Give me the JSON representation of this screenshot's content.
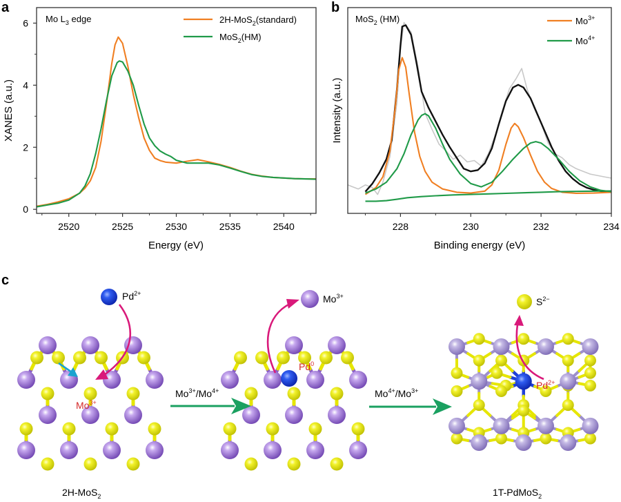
{
  "figure": {
    "panel_labels": {
      "a": "a",
      "b": "b",
      "c": "c"
    }
  },
  "chart_data": [
    {
      "panel": "a",
      "type": "line",
      "title": "",
      "annotation": {
        "main": "Mo L",
        "sub": "3",
        "rest": " edge"
      },
      "xlabel": "Energy (eV)",
      "ylabel": "XANES (a.u.)",
      "xlim": [
        2517,
        2543
      ],
      "ylim": [
        -0.13,
        6.5
      ],
      "xticks": [
        2520,
        2525,
        2530,
        2535,
        2540
      ],
      "xminor": [
        2517.5,
        2522.5,
        2527.5,
        2532.5,
        2537.5,
        2542.5
      ],
      "yticks": [
        0,
        2,
        4,
        6
      ],
      "yminor": [
        1,
        3,
        5
      ],
      "grid": false,
      "legend_position": "top-right",
      "series": [
        {
          "name": "2H-MoS2(standard)",
          "legend": {
            "pre": "2H-MoS",
            "sub": "2",
            "post": "(standard)"
          },
          "color": "#f07f22",
          "x": [
            2517,
            2518,
            2519,
            2520,
            2521,
            2521.5,
            2522,
            2522.5,
            2523,
            2523.5,
            2524,
            2524.3,
            2524.6,
            2525,
            2525.5,
            2526,
            2526.5,
            2527,
            2527.5,
            2528,
            2528.5,
            2529,
            2530,
            2531,
            2532,
            2533,
            2534,
            2535,
            2536,
            2537,
            2538,
            2539,
            2540,
            2541,
            2542,
            2543
          ],
          "y": [
            0.1,
            0.16,
            0.24,
            0.34,
            0.52,
            0.68,
            0.92,
            1.35,
            2.2,
            3.4,
            4.7,
            5.3,
            5.55,
            5.35,
            4.6,
            3.7,
            2.95,
            2.3,
            1.9,
            1.65,
            1.57,
            1.52,
            1.49,
            1.55,
            1.6,
            1.53,
            1.45,
            1.35,
            1.23,
            1.13,
            1.07,
            1.03,
            1.01,
            0.99,
            0.98,
            0.98
          ]
        },
        {
          "name": "MoS2(HM)",
          "legend": {
            "pre": "MoS",
            "sub": "2",
            "post": "(HM)"
          },
          "color": "#1f9a48",
          "x": [
            2517,
            2518,
            2519,
            2520,
            2521,
            2521.5,
            2522,
            2522.5,
            2523,
            2523.5,
            2524,
            2524.5,
            2524.7,
            2525,
            2525.5,
            2526,
            2526.5,
            2527,
            2527.5,
            2528,
            2528.5,
            2529,
            2529.5,
            2530,
            2531,
            2532,
            2533,
            2534,
            2535,
            2536,
            2537,
            2538,
            2539,
            2540,
            2541,
            2542,
            2543
          ],
          "y": [
            0.08,
            0.14,
            0.2,
            0.3,
            0.52,
            0.75,
            1.15,
            1.8,
            2.6,
            3.5,
            4.3,
            4.73,
            4.78,
            4.75,
            4.45,
            4.0,
            3.35,
            2.75,
            2.3,
            2.05,
            1.88,
            1.78,
            1.7,
            1.58,
            1.49,
            1.49,
            1.49,
            1.43,
            1.33,
            1.22,
            1.12,
            1.06,
            1.03,
            1.01,
            0.99,
            0.98,
            0.97
          ]
        }
      ]
    },
    {
      "panel": "b",
      "type": "line",
      "title": "",
      "annotation": {
        "main": "MoS",
        "sub": "2",
        "rest": " (HM)"
      },
      "xlabel": "Binding energy (eV)",
      "ylabel": "Intensity (a.u.)",
      "xlim": [
        226.5,
        234
      ],
      "ylim": [
        -0.6,
        7.0
      ],
      "xticks": [
        228,
        230,
        232,
        234
      ],
      "xminor": [
        227,
        229,
        231,
        233
      ],
      "yticks": [],
      "grid": false,
      "legend_position": "top-right",
      "series": [
        {
          "name": "Raw data",
          "color": "#c8c8c8",
          "in_legend": false,
          "x": [
            226.5,
            226.8,
            227.0,
            227.2,
            227.35,
            227.5,
            227.7,
            227.9,
            228.0,
            228.1,
            228.3,
            228.5,
            228.7,
            228.9,
            229.1,
            229.3,
            229.5,
            229.7,
            229.9,
            230.1,
            230.3,
            230.5,
            230.7,
            230.9,
            231.1,
            231.3,
            231.45,
            231.6,
            231.8,
            232.0,
            232.2,
            232.4,
            232.6,
            232.8,
            233.0,
            233.2,
            233.4,
            233.6,
            233.8,
            234.0
          ],
          "y": [
            0.45,
            0.3,
            0.45,
            0.35,
            0.1,
            0.55,
            1.5,
            3.5,
            5.5,
            6.45,
            6.1,
            4.8,
            3.1,
            2.5,
            1.95,
            1.7,
            1.4,
            1.55,
            1.3,
            1.35,
            1.15,
            1.6,
            2.3,
            3.2,
            4.0,
            4.4,
            4.75,
            4.0,
            3.3,
            2.75,
            2.0,
            1.6,
            1.45,
            1.2,
            1.05,
            0.95,
            0.85,
            0.8,
            0.75,
            0.7
          ]
        },
        {
          "name": "Envelope",
          "color": "#111111",
          "in_legend": false,
          "x": [
            227.0,
            227.2,
            227.4,
            227.6,
            227.75,
            227.9,
            228.0,
            228.05,
            228.15,
            228.3,
            228.45,
            228.6,
            228.8,
            229.0,
            229.2,
            229.4,
            229.6,
            229.8,
            230.0,
            230.2,
            230.4,
            230.6,
            230.8,
            231.0,
            231.2,
            231.35,
            231.5,
            231.7,
            231.9,
            232.1,
            232.3,
            232.5,
            232.7,
            232.9,
            233.1,
            233.3,
            233.5,
            233.7,
            234.0
          ],
          "y": [
            0.2,
            0.5,
            0.9,
            1.4,
            2.1,
            4.0,
            5.6,
            6.3,
            6.35,
            6.0,
            5.0,
            3.9,
            3.3,
            2.8,
            2.3,
            1.85,
            1.45,
            1.05,
            0.95,
            1.0,
            1.25,
            1.8,
            2.7,
            3.55,
            4.05,
            4.15,
            4.05,
            3.65,
            3.05,
            2.45,
            1.85,
            1.35,
            0.95,
            0.68,
            0.48,
            0.35,
            0.27,
            0.22,
            0.18
          ]
        },
        {
          "name": "Mo3+",
          "legend": {
            "pre": "Mo",
            "sup": "3+"
          },
          "color": "#f07f22",
          "in_legend": true,
          "x": [
            227.0,
            227.3,
            227.5,
            227.7,
            227.85,
            227.95,
            228.05,
            228.15,
            228.25,
            228.4,
            228.55,
            228.7,
            228.9,
            229.2,
            229.6,
            230.0,
            230.4,
            230.6,
            230.8,
            231.0,
            231.15,
            231.25,
            231.35,
            231.5,
            231.7,
            231.9,
            232.1,
            232.3,
            232.6,
            233.0,
            233.5,
            234.0
          ],
          "y": [
            0.1,
            0.35,
            0.75,
            1.7,
            3.3,
            4.7,
            5.15,
            4.8,
            3.8,
            2.4,
            1.5,
            0.95,
            0.55,
            0.3,
            0.18,
            0.15,
            0.22,
            0.45,
            1.0,
            1.95,
            2.55,
            2.72,
            2.6,
            2.2,
            1.55,
            0.95,
            0.55,
            0.32,
            0.18,
            0.14,
            0.15,
            0.18
          ]
        },
        {
          "name": "Mo4+",
          "legend": {
            "pre": "Mo",
            "sup": "4+"
          },
          "color": "#1f9a48",
          "in_legend": true,
          "x": [
            227.0,
            227.3,
            227.6,
            227.9,
            228.1,
            228.3,
            228.5,
            228.6,
            228.7,
            228.8,
            229.0,
            229.2,
            229.4,
            229.7,
            230.0,
            230.3,
            230.6,
            230.9,
            231.2,
            231.5,
            231.7,
            231.85,
            232.0,
            232.2,
            232.5,
            232.8,
            233.1,
            233.4,
            233.7,
            234.0
          ],
          "y": [
            0.15,
            0.3,
            0.55,
            1.05,
            1.6,
            2.3,
            2.85,
            3.02,
            3.08,
            3.0,
            2.55,
            1.95,
            1.4,
            0.85,
            0.5,
            0.38,
            0.55,
            0.95,
            1.4,
            1.8,
            2.0,
            2.05,
            2.0,
            1.8,
            1.4,
            0.95,
            0.6,
            0.38,
            0.25,
            0.2
          ]
        },
        {
          "name": "Background",
          "color": "#1f9a48",
          "in_legend": false,
          "x": [
            227.0,
            227.3,
            227.6,
            227.9,
            228.2,
            228.6,
            229.0,
            229.5,
            230.0,
            230.5,
            231.0,
            231.5,
            232.0,
            232.5,
            233.0,
            233.5,
            234.0
          ],
          "y": [
            -0.15,
            -0.15,
            -0.13,
            -0.08,
            -0.02,
            0.02,
            0.05,
            0.08,
            0.1,
            0.12,
            0.14,
            0.16,
            0.18,
            0.2,
            0.21,
            0.22,
            0.23
          ]
        }
      ]
    }
  ],
  "scheme": {
    "stages": [
      {
        "id": "2h",
        "label": {
          "pre": "2H-MoS",
          "sub": "2"
        }
      },
      {
        "id": "intermediate",
        "label": null
      },
      {
        "id": "1t",
        "label": {
          "pre": "1T-PdMoS",
          "sub": "2"
        }
      }
    ],
    "arrows": [
      {
        "label": {
          "a": "Mo",
          "a_sup": "3+",
          "sep": "/Mo",
          "b_sup": "4+"
        }
      },
      {
        "label": {
          "a": "Mo",
          "a_sup": "4+",
          "sep": "/Mo",
          "b_sup": "3+"
        }
      }
    ],
    "species": {
      "pd2_in": {
        "pre": "Pd",
        "sup": "2+"
      },
      "mo3_site": {
        "pre": "Mo",
        "sup": "3+"
      },
      "mo3_out": {
        "pre": "Mo",
        "sup": "3+"
      },
      "pd0": {
        "pre": "Pd",
        "sup": "0"
      },
      "s2_out": {
        "pre": "S",
        "sup": "2−"
      },
      "pd2_site": {
        "pre": "Pd",
        "sup": "2+"
      }
    },
    "colors": {
      "mo": "#8a5cc8",
      "mo_1t": "#9a88c8",
      "s": "#e6e600",
      "pd": "#1e3fd8",
      "bond_1t": "#9d8fcc",
      "pink_arrow": "#d9197a",
      "cyan_arrow": "#1aa3cf",
      "green_arrow": "#1aa060",
      "red_label": "#d42a2a"
    }
  }
}
